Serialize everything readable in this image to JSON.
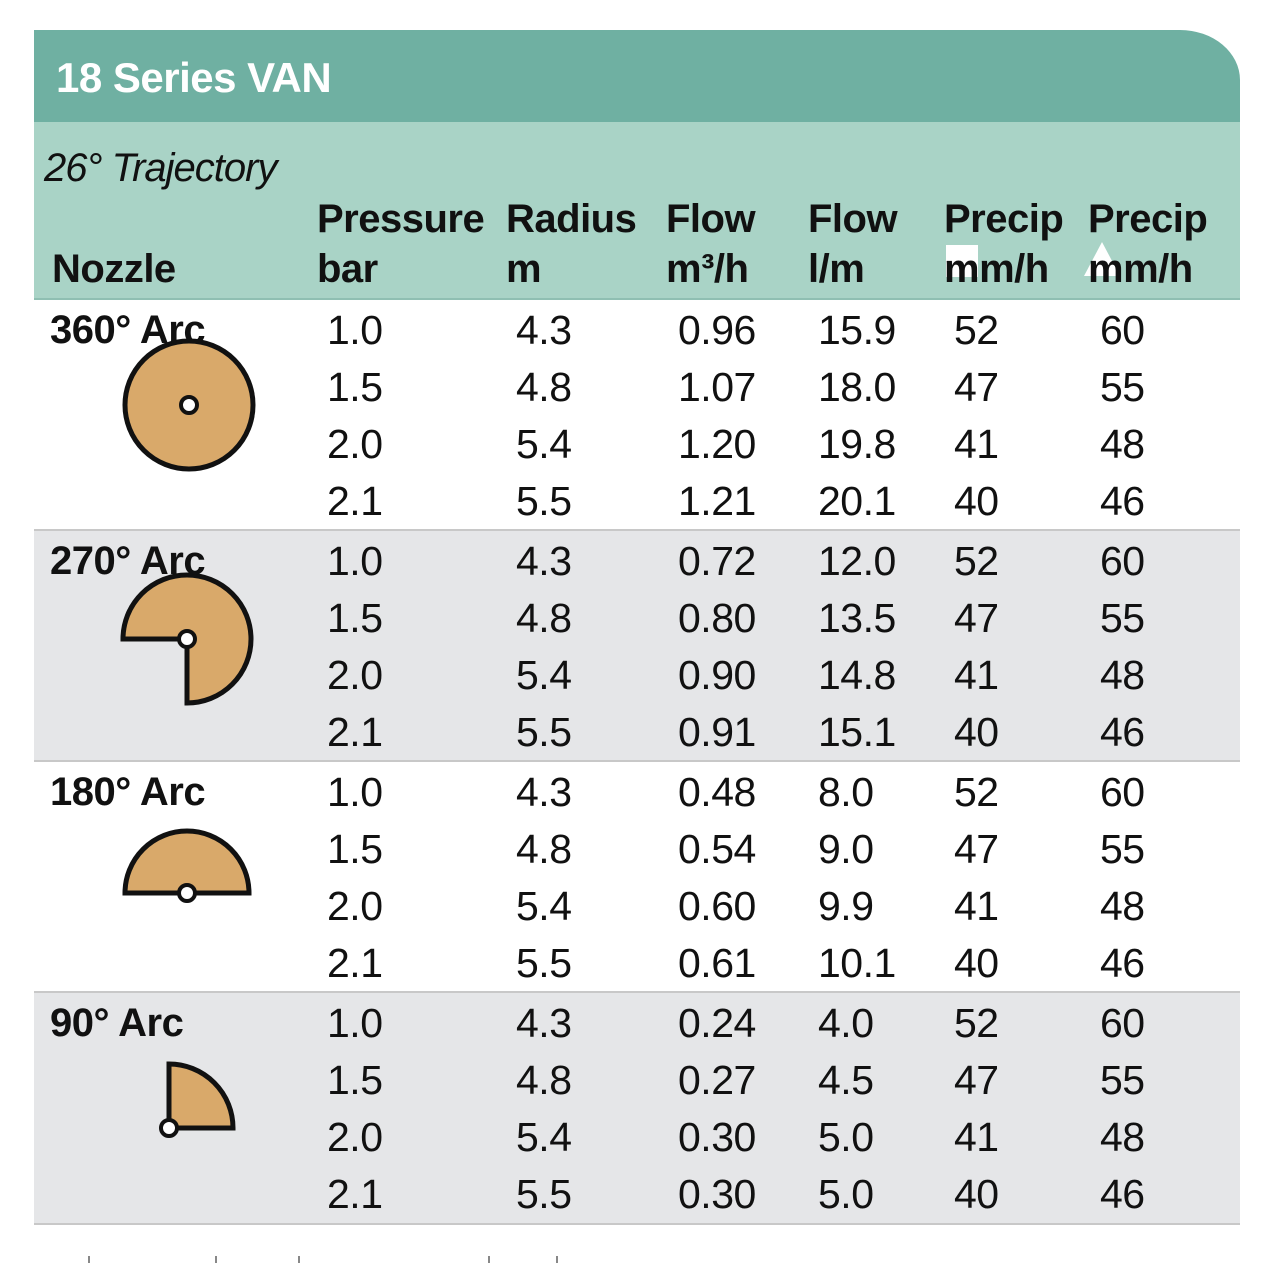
{
  "title": "18 Series VAN",
  "trajectory": "26° Trajectory",
  "columns": {
    "nozzle": [
      "Nozzle"
    ],
    "pressure": [
      "Pressure",
      "bar"
    ],
    "radius": [
      "Radius",
      "m"
    ],
    "flow_m3": [
      "Flow",
      "m³/h"
    ],
    "flow_lm": [
      "Flow",
      "l/m"
    ],
    "precip_square": [
      "Precip",
      "mm/h"
    ],
    "precip_triangle": [
      "Precip",
      "mm/h"
    ]
  },
  "symbols": {
    "square": "square-icon",
    "triangle": "triangle-icon",
    "color": "#ffffff"
  },
  "colors": {
    "title_bar": "#6fb0a2",
    "header": "#a9d3c6",
    "shaded_row": "#e5e6e8",
    "nozzle_fill": "#d9a96a"
  },
  "groups": [
    {
      "label": "360° Arc",
      "arc_degrees": 360,
      "icon": "full-circle-nozzle-icon",
      "rows": [
        {
          "pressure": "1.0",
          "radius": "4.3",
          "flow_m3": "0.96",
          "flow_lm": "15.9",
          "precip_square": "52",
          "precip_triangle": "60"
        },
        {
          "pressure": "1.5",
          "radius": "4.8",
          "flow_m3": "1.07",
          "flow_lm": "18.0",
          "precip_square": "47",
          "precip_triangle": "55"
        },
        {
          "pressure": "2.0",
          "radius": "5.4",
          "flow_m3": "1.20",
          "flow_lm": "19.8",
          "precip_square": "41",
          "precip_triangle": "48"
        },
        {
          "pressure": "2.1",
          "radius": "5.5",
          "flow_m3": "1.21",
          "flow_lm": "20.1",
          "precip_square": "40",
          "precip_triangle": "46"
        }
      ]
    },
    {
      "label": "270° Arc",
      "arc_degrees": 270,
      "icon": "three-quarter-circle-nozzle-icon",
      "rows": [
        {
          "pressure": "1.0",
          "radius": "4.3",
          "flow_m3": "0.72",
          "flow_lm": "12.0",
          "precip_square": "52",
          "precip_triangle": "60"
        },
        {
          "pressure": "1.5",
          "radius": "4.8",
          "flow_m3": "0.80",
          "flow_lm": "13.5",
          "precip_square": "47",
          "precip_triangle": "55"
        },
        {
          "pressure": "2.0",
          "radius": "5.4",
          "flow_m3": "0.90",
          "flow_lm": "14.8",
          "precip_square": "41",
          "precip_triangle": "48"
        },
        {
          "pressure": "2.1",
          "radius": "5.5",
          "flow_m3": "0.91",
          "flow_lm": "15.1",
          "precip_square": "40",
          "precip_triangle": "46"
        }
      ]
    },
    {
      "label": "180° Arc",
      "arc_degrees": 180,
      "icon": "half-circle-nozzle-icon",
      "rows": [
        {
          "pressure": "1.0",
          "radius": "4.3",
          "flow_m3": "0.48",
          "flow_lm": "8.0",
          "precip_square": "52",
          "precip_triangle": "60"
        },
        {
          "pressure": "1.5",
          "radius": "4.8",
          "flow_m3": "0.54",
          "flow_lm": "9.0",
          "precip_square": "47",
          "precip_triangle": "55"
        },
        {
          "pressure": "2.0",
          "radius": "5.4",
          "flow_m3": "0.60",
          "flow_lm": "9.9",
          "precip_square": "41",
          "precip_triangle": "48"
        },
        {
          "pressure": "2.1",
          "radius": "5.5",
          "flow_m3": "0.61",
          "flow_lm": "10.1",
          "precip_square": "40",
          "precip_triangle": "46"
        }
      ]
    },
    {
      "label": "90° Arc",
      "arc_degrees": 90,
      "icon": "quarter-circle-nozzle-icon",
      "rows": [
        {
          "pressure": "1.0",
          "radius": "4.3",
          "flow_m3": "0.24",
          "flow_lm": "4.0",
          "precip_square": "52",
          "precip_triangle": "60"
        },
        {
          "pressure": "1.5",
          "radius": "4.8",
          "flow_m3": "0.27",
          "flow_lm": "4.5",
          "precip_square": "47",
          "precip_triangle": "55"
        },
        {
          "pressure": "2.0",
          "radius": "5.4",
          "flow_m3": "0.30",
          "flow_lm": "5.0",
          "precip_square": "41",
          "precip_triangle": "48"
        },
        {
          "pressure": "2.1",
          "radius": "5.5",
          "flow_m3": "0.30",
          "flow_lm": "5.0",
          "precip_square": "40",
          "precip_triangle": "46"
        }
      ]
    }
  ]
}
